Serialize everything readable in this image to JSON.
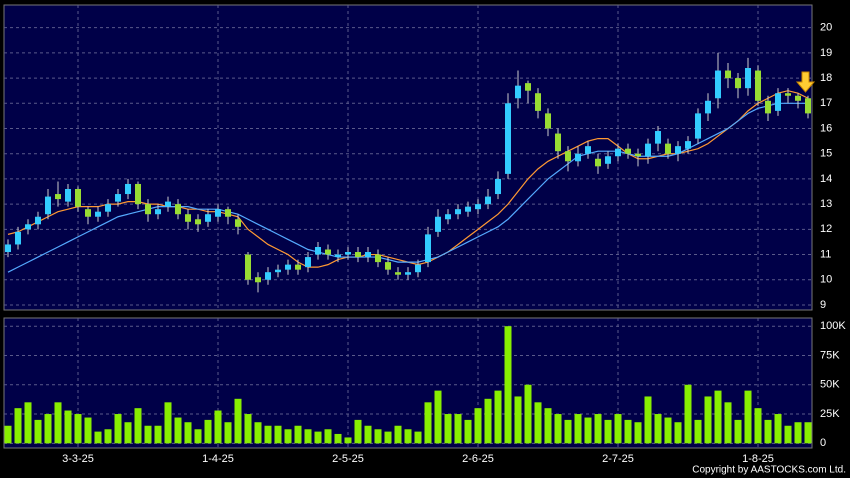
{
  "chart_data": [
    {
      "type": "candlestick",
      "open": [
        11.1,
        11.4,
        12.0,
        12.2,
        12.6,
        13.4,
        13.1,
        13.6,
        12.8,
        12.5,
        12.7,
        13.1,
        13.4,
        13.8,
        13.0,
        12.6,
        12.9,
        13.0,
        12.6,
        12.4,
        12.3,
        12.5,
        12.8,
        12.4,
        11.0,
        10.1,
        10.0,
        10.3,
        10.4,
        10.6,
        10.5,
        11.0,
        11.2,
        10.9,
        11.0,
        11.1,
        10.9,
        11.0,
        10.7,
        10.3,
        10.2,
        10.3,
        10.7,
        11.9,
        12.4,
        12.6,
        12.7,
        12.8,
        13.0,
        13.4,
        14.2,
        17.2,
        17.8,
        17.4,
        16.6,
        15.8,
        15.1,
        14.7,
        15.0,
        14.8,
        14.6,
        14.9,
        15.2,
        15.0,
        14.9,
        15.4,
        15.4,
        15.0,
        15.2,
        15.6,
        16.6,
        17.2,
        18.3,
        18.0,
        17.6,
        18.3,
        17.1,
        16.7,
        17.4,
        17.3,
        17.2
      ],
      "high": [
        11.6,
        12.1,
        12.4,
        12.7,
        13.6,
        13.9,
        13.8,
        13.7,
        12.9,
        12.9,
        13.2,
        13.6,
        14.0,
        13.9,
        13.2,
        13.0,
        13.3,
        13.2,
        12.8,
        12.6,
        12.8,
        13.0,
        12.9,
        12.6,
        11.1,
        10.3,
        10.5,
        10.6,
        10.8,
        10.8,
        11.1,
        11.5,
        11.4,
        11.2,
        11.3,
        11.3,
        11.3,
        11.2,
        10.9,
        10.5,
        10.5,
        10.8,
        12.1,
        12.8,
        12.8,
        13.0,
        13.1,
        13.2,
        13.6,
        14.3,
        17.4,
        18.3,
        17.9,
        17.6,
        16.8,
        16.0,
        15.3,
        15.3,
        15.5,
        15.0,
        15.1,
        15.4,
        15.4,
        15.2,
        15.6,
        16.1,
        15.6,
        15.5,
        15.7,
        16.8,
        17.4,
        19.0,
        18.6,
        18.2,
        18.8,
        18.5,
        17.3,
        17.6,
        17.6,
        17.4,
        17.3
      ],
      "low": [
        10.9,
        11.2,
        11.8,
        12.0,
        12.4,
        12.9,
        12.9,
        12.7,
        12.2,
        12.3,
        12.5,
        12.9,
        13.2,
        12.8,
        12.3,
        12.4,
        12.7,
        12.4,
        12.0,
        11.9,
        12.1,
        12.3,
        12.2,
        11.8,
        9.8,
        9.5,
        9.8,
        10.1,
        10.2,
        10.2,
        10.3,
        10.8,
        10.8,
        10.7,
        10.8,
        10.7,
        10.7,
        10.5,
        10.2,
        10.0,
        10.0,
        10.1,
        10.5,
        11.7,
        12.2,
        12.4,
        12.5,
        12.6,
        12.8,
        13.2,
        14.0,
        16.8,
        17.0,
        16.4,
        15.7,
        14.8,
        14.3,
        14.5,
        14.8,
        14.2,
        14.4,
        14.7,
        14.8,
        14.5,
        14.6,
        15.1,
        14.8,
        14.7,
        15.0,
        15.4,
        16.3,
        16.8,
        17.6,
        17.2,
        17.3,
        16.9,
        16.3,
        16.5,
        17.0,
        16.8,
        16.4
      ],
      "close": [
        11.4,
        11.9,
        12.2,
        12.5,
        13.3,
        13.2,
        13.6,
        12.9,
        12.5,
        12.7,
        13.0,
        13.4,
        13.8,
        13.0,
        12.6,
        12.8,
        13.1,
        12.6,
        12.3,
        12.2,
        12.6,
        12.8,
        12.5,
        12.1,
        10.0,
        9.9,
        10.3,
        10.4,
        10.6,
        10.4,
        10.9,
        11.3,
        11.0,
        11.0,
        11.1,
        10.9,
        11.1,
        10.7,
        10.4,
        10.2,
        10.3,
        10.6,
        11.8,
        12.5,
        12.6,
        12.8,
        12.9,
        13.0,
        13.3,
        14.0,
        17.0,
        17.7,
        17.5,
        16.7,
        16.0,
        15.1,
        14.7,
        15.0,
        15.3,
        14.5,
        14.9,
        15.2,
        15.0,
        14.9,
        15.4,
        15.9,
        15.0,
        15.3,
        15.5,
        16.6,
        17.1,
        18.3,
        18.0,
        17.6,
        18.4,
        17.1,
        16.6,
        17.4,
        17.3,
        17.1,
        16.6
      ],
      "up_color": "#33ccff",
      "down_color": "#99dd33",
      "lines": [
        {
          "color": "#ff9933",
          "values": [
            11.8,
            11.9,
            12.1,
            12.3,
            12.5,
            12.7,
            12.8,
            12.9,
            12.9,
            12.9,
            13.0,
            13.0,
            13.1,
            13.1,
            13.0,
            13.0,
            12.9,
            12.9,
            12.8,
            12.8,
            12.7,
            12.7,
            12.6,
            12.5,
            12.0,
            11.7,
            11.4,
            11.2,
            11.0,
            10.7,
            10.5,
            10.5,
            10.6,
            10.8,
            10.9,
            10.9,
            11.0,
            11.0,
            10.9,
            10.8,
            10.7,
            10.6,
            10.7,
            10.9,
            11.1,
            11.4,
            11.7,
            12.0,
            12.3,
            12.6,
            13.0,
            13.5,
            14.0,
            14.4,
            14.7,
            14.9,
            15.1,
            15.3,
            15.5,
            15.6,
            15.6,
            15.3,
            15.0,
            14.8,
            14.8,
            14.9,
            15.0,
            15.0,
            15.1,
            15.2,
            15.4,
            15.7,
            16.0,
            16.3,
            16.7,
            17.0,
            17.2,
            17.4,
            17.5,
            17.4,
            17.2
          ]
        },
        {
          "color": "#55aaff",
          "values": [
            10.3,
            10.5,
            10.7,
            10.9,
            11.1,
            11.3,
            11.5,
            11.7,
            11.9,
            12.1,
            12.3,
            12.5,
            12.6,
            12.7,
            12.8,
            12.9,
            12.9,
            12.9,
            12.9,
            12.8,
            12.8,
            12.8,
            12.7,
            12.6,
            12.4,
            12.2,
            12.0,
            11.8,
            11.6,
            11.4,
            11.2,
            11.1,
            11.0,
            10.9,
            10.9,
            10.9,
            10.9,
            10.9,
            10.8,
            10.7,
            10.7,
            10.7,
            10.8,
            10.9,
            11.1,
            11.3,
            11.5,
            11.7,
            11.9,
            12.1,
            12.4,
            12.8,
            13.2,
            13.6,
            14.0,
            14.3,
            14.6,
            14.9,
            15.0,
            15.1,
            15.1,
            15.1,
            15.0,
            14.9,
            14.9,
            14.9,
            14.9,
            15.0,
            15.2,
            15.4,
            15.6,
            15.8,
            16.0,
            16.3,
            16.6,
            16.8,
            16.9,
            17.0,
            17.0,
            17.0,
            17.0
          ]
        }
      ],
      "xlim": [
        -0.4,
        80.4
      ],
      "ylim": [
        8.8,
        20.9
      ],
      "yticks": [
        9,
        10,
        11,
        12,
        13,
        14,
        15,
        16,
        17,
        18,
        19,
        20
      ],
      "grid": true
    },
    {
      "type": "bar",
      "values": [
        15000,
        30000,
        35000,
        20000,
        25000,
        35000,
        28000,
        25000,
        22000,
        10000,
        12000,
        25000,
        18000,
        30000,
        15000,
        15000,
        35000,
        22000,
        18000,
        12000,
        20000,
        28000,
        18000,
        38000,
        25000,
        18000,
        15000,
        15000,
        12000,
        15000,
        12000,
        10000,
        12000,
        8000,
        5000,
        20000,
        15000,
        12000,
        10000,
        15000,
        12000,
        10000,
        35000,
        45000,
        25000,
        25000,
        20000,
        30000,
        38000,
        45000,
        100000,
        40000,
        50000,
        35000,
        30000,
        25000,
        20000,
        25000,
        22000,
        25000,
        20000,
        25000,
        20000,
        18000,
        40000,
        25000,
        22000,
        18000,
        50000,
        20000,
        40000,
        45000,
        35000,
        20000,
        45000,
        30000,
        20000,
        25000,
        15000,
        18000,
        18000
      ],
      "color": "#88ee00",
      "xlim": [
        -0.4,
        80.4
      ],
      "ylim": [
        -4000,
        107000
      ],
      "yticks": [
        0,
        {
          "value": 25000,
          "label": "25K"
        },
        {
          "value": 50000,
          "label": "50K"
        },
        {
          "value": 75000,
          "label": "75K"
        },
        {
          "value": 100000,
          "label": "100K"
        }
      ],
      "xticks": [
        {
          "value": 7,
          "label": "3-3-25"
        },
        {
          "value": 21,
          "label": "1-4-25"
        },
        {
          "value": 34,
          "label": "2-5-25"
        },
        {
          "value": 47,
          "label": "2-6-25"
        },
        {
          "value": 61,
          "label": "2-7-25"
        },
        {
          "value": 75,
          "label": "1-8-25"
        }
      ],
      "grid": true
    }
  ],
  "footer": "Copyright by AASTOCKS.com Ltd."
}
